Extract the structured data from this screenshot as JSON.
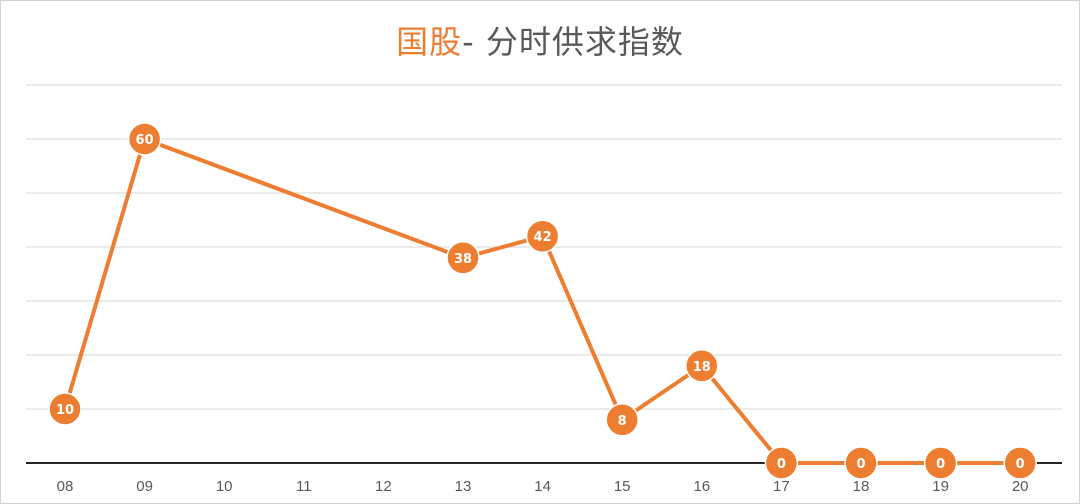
{
  "chart_data": {
    "type": "line",
    "title": {
      "highlight": "国股",
      "rest": "- 分时供求指数"
    },
    "categories": [
      "08",
      "09",
      "10",
      "11",
      "12",
      "13",
      "14",
      "15",
      "16",
      "17",
      "18",
      "19",
      "20"
    ],
    "series": [
      {
        "points": [
          {
            "x": "08",
            "y": 10
          },
          {
            "x": "09",
            "y": 60
          },
          {
            "x": "13",
            "y": 38
          },
          {
            "x": "14",
            "y": 42
          },
          {
            "x": "15",
            "y": 8
          },
          {
            "x": "16",
            "y": 18
          },
          {
            "x": "17",
            "y": 0
          },
          {
            "x": "18",
            "y": 0
          },
          {
            "x": "19",
            "y": 0
          },
          {
            "x": "20",
            "y": 0
          }
        ]
      }
    ],
    "ylim": [
      0,
      70
    ],
    "grid": true,
    "colors": {
      "accent": "#ed7d31",
      "title_rest": "#595959"
    }
  }
}
